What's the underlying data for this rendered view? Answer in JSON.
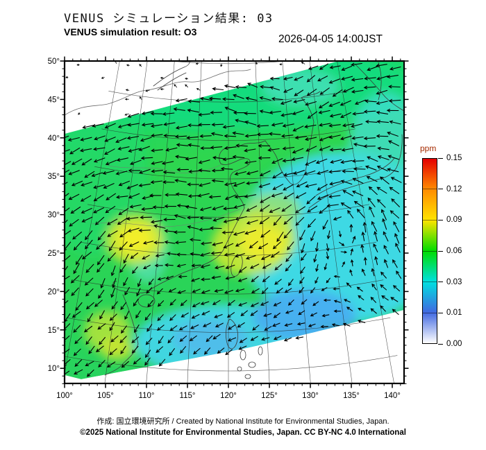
{
  "header": {
    "title_jp": "VENUS シミュレーション結果: 03",
    "title_en": "VENUS simulation result: O3",
    "datetime": "2026-04-05 14:00JST"
  },
  "footer": {
    "credit": "作成: 国立環境研究所 / Created by National Institute for Environmental Studies, Japan.",
    "copyright": "©2025 National Institute for Environmental Studies, Japan. CC BY-NC 4.0 International"
  },
  "colorbar": {
    "unit": "ppm",
    "unit_color": "#a52a00",
    "tick_labels": [
      "0.15",
      "0.12",
      "0.09",
      "0.06",
      "0.03",
      "0.01",
      "0.00"
    ],
    "colors_top_to_bottom": [
      "#e40000",
      "#ff8c00",
      "#ffe400",
      "#00dc00",
      "#00e0e0",
      "#4169e1",
      "#ffffff"
    ]
  },
  "map": {
    "lon_tick_labels": [
      "100°",
      "105°",
      "110°",
      "115°",
      "120°",
      "125°",
      "130°",
      "135°",
      "140°"
    ],
    "lat_tick_labels": [
      "50°",
      "45°",
      "40°",
      "35°",
      "30°",
      "25°",
      "20°",
      "15°",
      "10°"
    ],
    "overlay": "wind vector arrows",
    "swath_note": "colored simulation swath is a rotated band; upper-left and lower-right corners of the map are outside the swath (white)"
  },
  "chart_data": {
    "type": "heatmap",
    "title": "VENUS シミュレーション結果: 03 / VENUS simulation result: O3",
    "datetime": "2026-04-05 14:00JST",
    "variable": "O3",
    "units": "ppm",
    "lon_range": [
      100,
      140
    ],
    "lat_range": [
      10,
      50
    ],
    "levels": [
      0.0,
      0.01,
      0.03,
      0.06,
      0.09,
      0.12,
      0.15
    ],
    "level_colors": [
      "#ffffff",
      "#4169e1",
      "#00e0e0",
      "#00dc00",
      "#ffe400",
      "#ff8c00",
      "#e40000"
    ],
    "field_summary": [
      {
        "region": "most of swath (China, Korea, Japan, north of domain)",
        "value_ppm": 0.06
      },
      {
        "region": "southwest China near 107E 27N (yellow maximum)",
        "value_ppm": 0.09
      },
      {
        "region": "east China coast near 119-123E 27-31N (yellow band)",
        "value_ppm": 0.09
      },
      {
        "region": "far southwest corner near 103E 13N (yellow-green)",
        "value_ppm": 0.08
      },
      {
        "region": "South China Sea / western Pacific southeast of domain (cyan-blue)",
        "value_ppm": 0.02
      },
      {
        "region": "blue minima near 122E 17N and 117E 14N",
        "value_ppm": 0.01
      }
    ],
    "overlay": "black wind vector arrows on regular grid",
    "legend_position": "right vertical colorbar labeled ppm"
  }
}
